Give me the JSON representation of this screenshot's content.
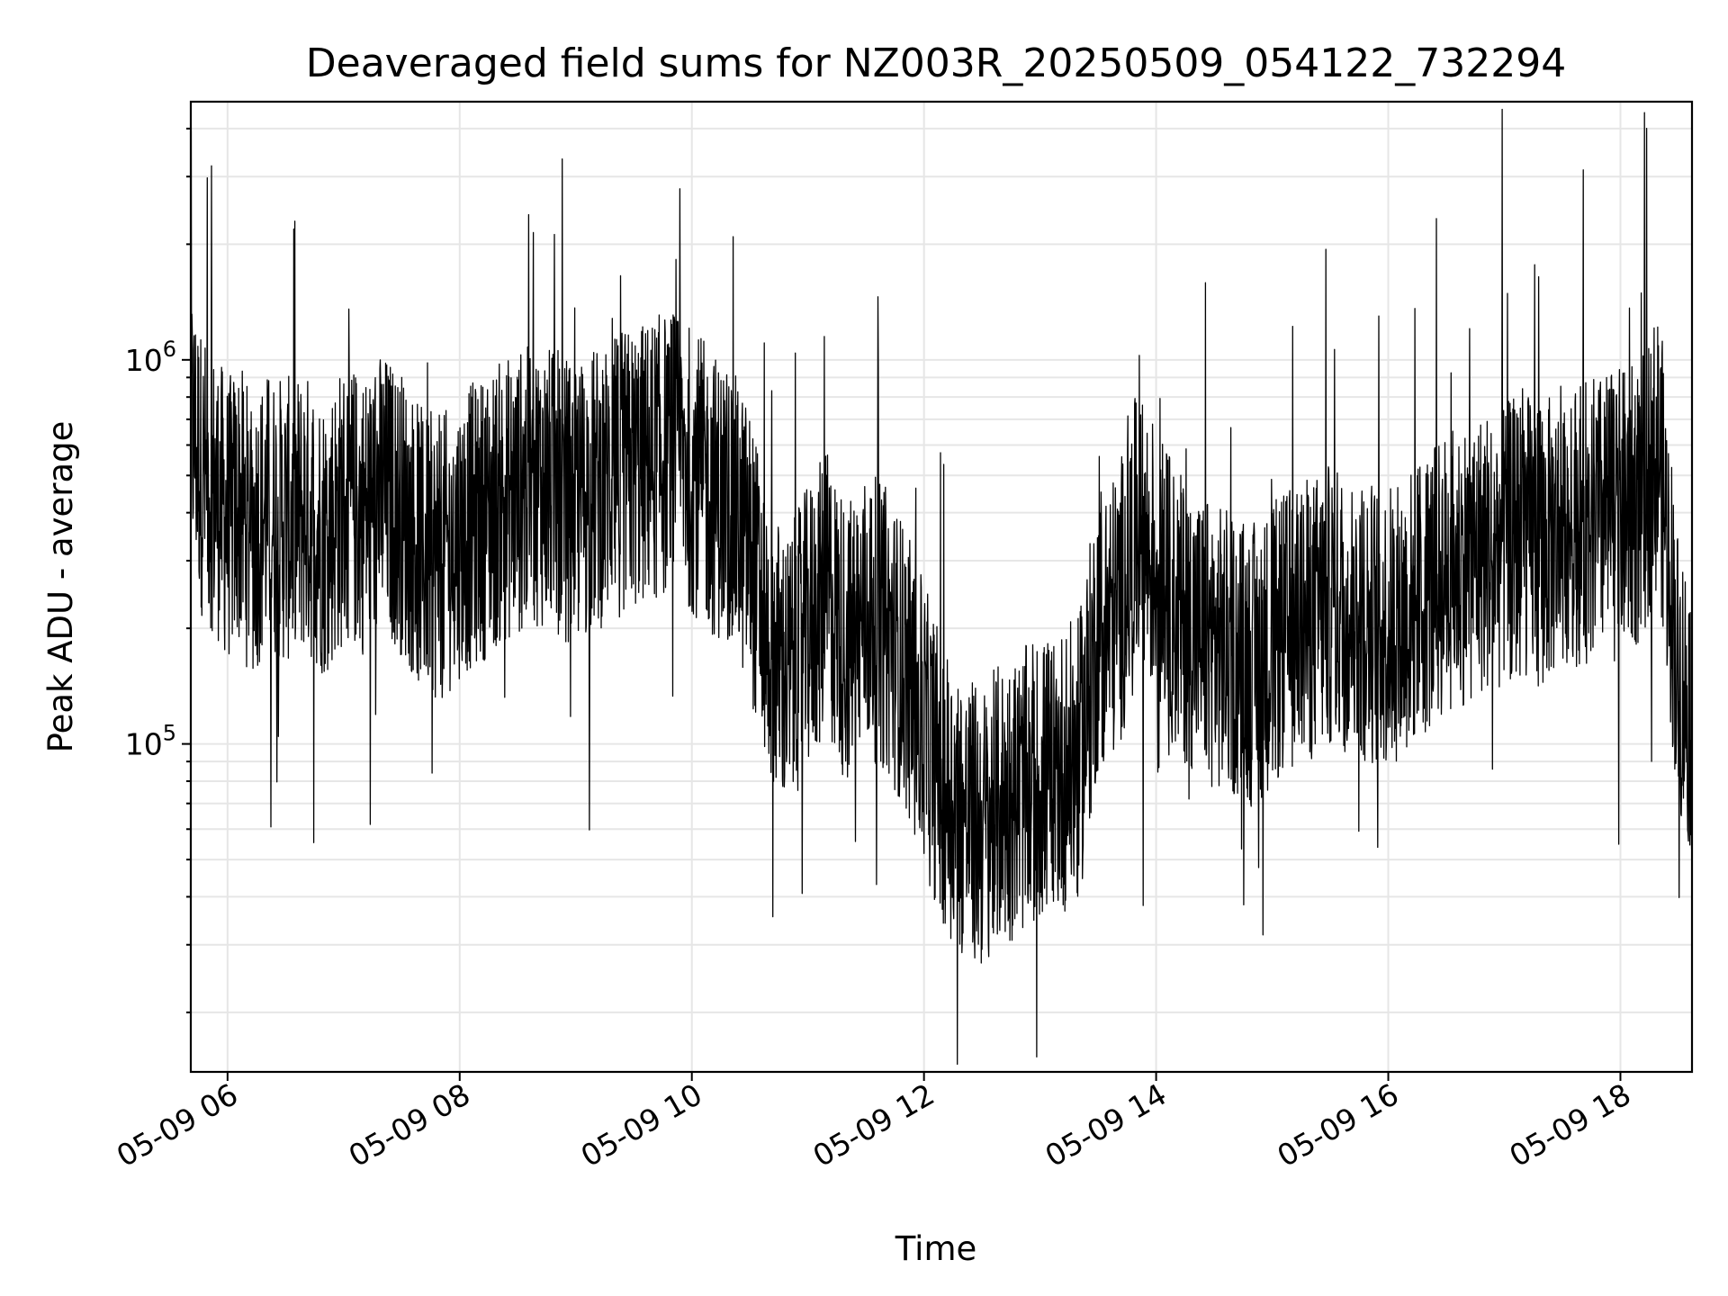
{
  "chart_data": {
    "type": "line",
    "title": "Deaveraged field sums for NZ003R_20250509_054122_732294",
    "xlabel": "Time",
    "ylabel": "Peak ADU - average",
    "yscale": "log",
    "grid": true,
    "xlim": [
      "2025-05-09T05:41:00",
      "2025-05-09T18:37:00"
    ],
    "ylim": [
      14000,
      4700000
    ],
    "xticks": [
      {
        "value": "2025-05-09T06:00:00",
        "label": "05-09 06"
      },
      {
        "value": "2025-05-09T08:00:00",
        "label": "05-09 08"
      },
      {
        "value": "2025-05-09T10:00:00",
        "label": "05-09 10"
      },
      {
        "value": "2025-05-09T12:00:00",
        "label": "05-09 12"
      },
      {
        "value": "2025-05-09T14:00:00",
        "label": "05-09 14"
      },
      {
        "value": "2025-05-09T16:00:00",
        "label": "05-09 16"
      },
      {
        "value": "2025-05-09T18:00:00",
        "label": "05-09 18"
      }
    ],
    "yticks": [
      {
        "value": 100000,
        "base": "10",
        "exp": "5"
      },
      {
        "value": 1000000,
        "base": "10",
        "exp": "6"
      }
    ],
    "series": [
      {
        "color": "#000000",
        "x": [
          "2025-05-09T05:41:00",
          "2025-05-09T05:47:00",
          "2025-05-09T05:54:00",
          "2025-05-09T06:00:00",
          "2025-05-09T06:06:00",
          "2025-05-09T06:12:00",
          "2025-05-09T06:20:00",
          "2025-05-09T06:30:00",
          "2025-05-09T06:40:00",
          "2025-05-09T06:50:00",
          "2025-05-09T07:00:00",
          "2025-05-09T07:10:00",
          "2025-05-09T07:20:00",
          "2025-05-09T07:30:00",
          "2025-05-09T07:40:00",
          "2025-05-09T07:50:00",
          "2025-05-09T08:00:00",
          "2025-05-09T08:10:00",
          "2025-05-09T08:20:00",
          "2025-05-09T08:30:00",
          "2025-05-09T08:40:00",
          "2025-05-09T08:50:00",
          "2025-05-09T09:00:00",
          "2025-05-09T09:10:00",
          "2025-05-09T09:20:00",
          "2025-05-09T09:30:00",
          "2025-05-09T09:40:00",
          "2025-05-09T09:50:00",
          "2025-05-09T10:00:00",
          "2025-05-09T10:10:00",
          "2025-05-09T10:20:00",
          "2025-05-09T10:30:00",
          "2025-05-09T10:40:00",
          "2025-05-09T10:50:00",
          "2025-05-09T11:00:00",
          "2025-05-09T11:10:00",
          "2025-05-09T11:20:00",
          "2025-05-09T11:30:00",
          "2025-05-09T11:40:00",
          "2025-05-09T11:50:00",
          "2025-05-09T12:00:00",
          "2025-05-09T12:10:00",
          "2025-05-09T12:20:00",
          "2025-05-09T12:30:00",
          "2025-05-09T12:40:00",
          "2025-05-09T12:50:00",
          "2025-05-09T13:00:00",
          "2025-05-09T13:10:00",
          "2025-05-09T13:20:00",
          "2025-05-09T13:30:00",
          "2025-05-09T13:40:00",
          "2025-05-09T13:50:00",
          "2025-05-09T14:00:00",
          "2025-05-09T14:10:00",
          "2025-05-09T14:20:00",
          "2025-05-09T14:30:00",
          "2025-05-09T14:40:00",
          "2025-05-09T14:50:00",
          "2025-05-09T15:00:00",
          "2025-05-09T15:10:00",
          "2025-05-09T15:20:00",
          "2025-05-09T15:30:00",
          "2025-05-09T15:40:00",
          "2025-05-09T15:50:00",
          "2025-05-09T16:00:00",
          "2025-05-09T16:10:00",
          "2025-05-09T16:20:00",
          "2025-05-09T16:30:00",
          "2025-05-09T16:40:00",
          "2025-05-09T16:50:00",
          "2025-05-09T17:00:00",
          "2025-05-09T17:10:00",
          "2025-05-09T17:20:00",
          "2025-05-09T17:30:00",
          "2025-05-09T17:40:00",
          "2025-05-09T17:50:00",
          "2025-05-09T18:00:00",
          "2025-05-09T18:10:00",
          "2025-05-09T18:20:00",
          "2025-05-09T18:30:00",
          "2025-05-09T18:37:00"
        ],
        "y": [
          700000,
          500000,
          450000,
          380000,
          420000,
          350000,
          400000,
          380000,
          400000,
          350000,
          420000,
          400000,
          450000,
          400000,
          320000,
          300000,
          350000,
          380000,
          420000,
          450000,
          480000,
          450000,
          420000,
          460000,
          500000,
          520000,
          550000,
          580000,
          520000,
          450000,
          420000,
          320000,
          180000,
          150000,
          200000,
          250000,
          180000,
          220000,
          200000,
          160000,
          110000,
          80000,
          65000,
          60000,
          70000,
          75000,
          80000,
          85000,
          90000,
          200000,
          220000,
          350000,
          300000,
          220000,
          200000,
          180000,
          170000,
          160000,
          180000,
          200000,
          210000,
          230000,
          220000,
          210000,
          200000,
          220000,
          250000,
          280000,
          300000,
          320000,
          330000,
          350000,
          330000,
          360000,
          380000,
          390000,
          400000,
          420000,
          600000,
          150000,
          120000
        ]
      }
    ]
  }
}
